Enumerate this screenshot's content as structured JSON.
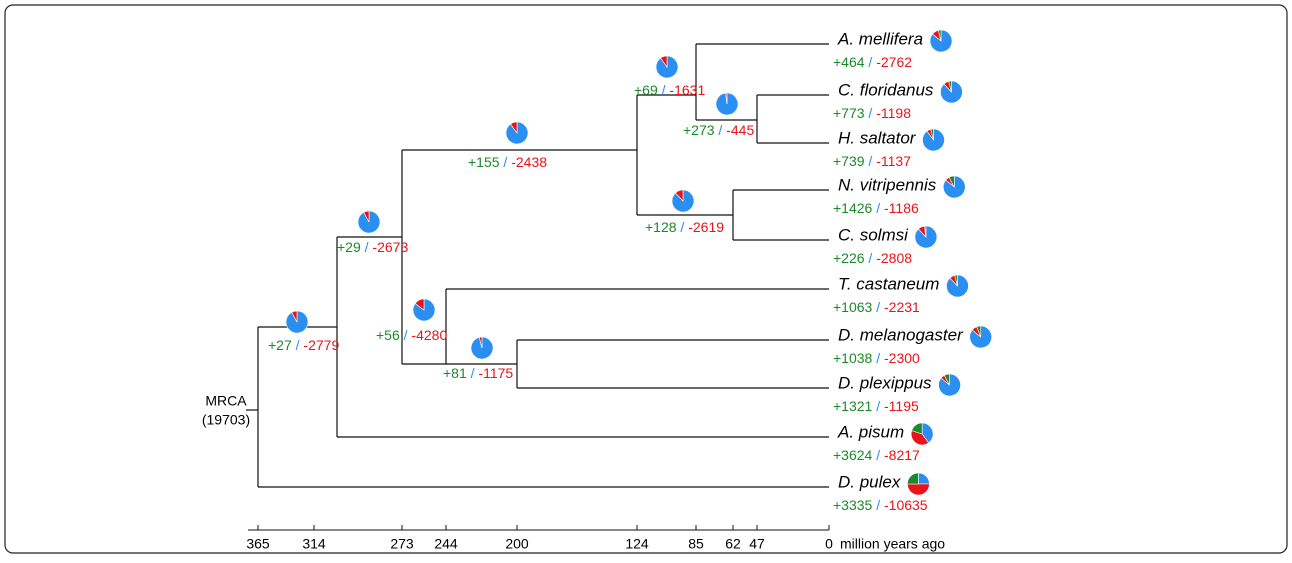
{
  "root": {
    "label": "MRCA",
    "size": "(19703)"
  },
  "sep": "/",
  "pie_colors": [
    "#2a8ff0",
    "#e8141a",
    "#1a8a2a"
  ],
  "internal": [
    {
      "gain": "+27",
      "loss": "-2779",
      "pie": [
        92,
        8,
        0
      ]
    },
    {
      "gain": "+29",
      "loss": "-2673",
      "pie": [
        92,
        8,
        0
      ]
    },
    {
      "gain": "+56",
      "loss": "-4280",
      "pie": [
        85,
        15,
        0
      ]
    },
    {
      "gain": "+155",
      "loss": "-2438",
      "pie": [
        90,
        10,
        0
      ]
    },
    {
      "gain": "+81",
      "loss": "-1175",
      "pie": [
        96,
        4,
        0
      ]
    },
    {
      "gain": "+69",
      "loss": "-1631",
      "pie": [
        90,
        10,
        0
      ]
    },
    {
      "gain": "+273",
      "loss": "-445",
      "pie": [
        98,
        2,
        0
      ]
    },
    {
      "gain": "+128",
      "loss": "-2619",
      "pie": [
        88,
        12,
        0
      ]
    }
  ],
  "taxa": [
    {
      "name": "A. mellifera",
      "gain": "+464",
      "loss": "-2762",
      "pie": [
        86,
        10,
        4
      ]
    },
    {
      "name": "C. floridanus",
      "gain": "+773",
      "loss": "-1198",
      "pie": [
        88,
        8,
        4
      ]
    },
    {
      "name": "H. saltator",
      "gain": "+739",
      "loss": "-1137",
      "pie": [
        90,
        6,
        4
      ]
    },
    {
      "name": "N. vitripennis",
      "gain": "+1426",
      "loss": "-1186",
      "pie": [
        86,
        6,
        8
      ]
    },
    {
      "name": "C. solmsi",
      "gain": "+226",
      "loss": "-2808",
      "pie": [
        88,
        10,
        2
      ]
    },
    {
      "name": "T. castaneum",
      "gain": "+1063",
      "loss": "-2231",
      "pie": [
        88,
        8,
        4
      ]
    },
    {
      "name": "D. melanogaster",
      "gain": "+1038",
      "loss": "-2300",
      "pie": [
        86,
        8,
        6
      ]
    },
    {
      "name": "D. plexippus",
      "gain": "+1321",
      "loss": "-1195",
      "pie": [
        86,
        6,
        8
      ]
    },
    {
      "name": "A. pisum",
      "gain": "+3624",
      "loss": "-8217",
      "pie": [
        40,
        40,
        20
      ]
    },
    {
      "name": "D. pulex",
      "gain": "+3335",
      "loss": "-10635",
      "pie": [
        25,
        50,
        25
      ]
    }
  ],
  "axis": {
    "ticks": [
      "365",
      "314",
      "273",
      "244",
      "200",
      "124",
      "85",
      "62",
      "47",
      "0"
    ],
    "unit": "million years ago"
  }
}
